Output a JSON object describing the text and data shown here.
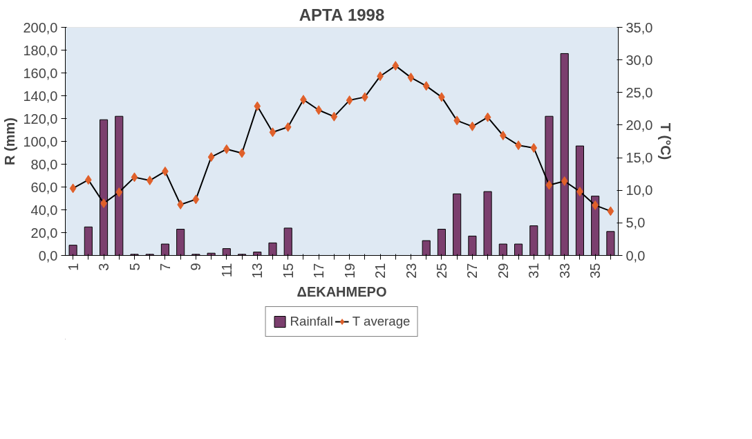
{
  "chart_data": {
    "type": "bar",
    "title": "ΑΡΤΑ 1998",
    "xlabel": "ΔΕΚΑΗΜΕΡΟ",
    "ylabel": "R (mm)",
    "y2label": "T (°C)",
    "categories": [
      "1",
      null,
      "3",
      null,
      "5",
      null,
      "7",
      null,
      "9",
      null,
      "11",
      null,
      "13",
      null,
      "15",
      null,
      "17",
      null,
      "19",
      null,
      "21",
      null,
      "23",
      null,
      "25",
      null,
      "27",
      null,
      "29",
      null,
      "31",
      null,
      "33",
      null,
      "35",
      null
    ],
    "series": [
      {
        "name": "Rainfall",
        "color": "#7b3f6e",
        "values": [
          9,
          25,
          119,
          122,
          1,
          1,
          10,
          23,
          1,
          2,
          6,
          1,
          3,
          11,
          24,
          0,
          0,
          0,
          0,
          0,
          0,
          0,
          0,
          13,
          23,
          54,
          17,
          56,
          10,
          10,
          26,
          122,
          177,
          96,
          52,
          21
        ]
      },
      {
        "name": "T average",
        "type": "line",
        "axis": "y2",
        "color": "#e0602a",
        "marker": "diamond",
        "values": [
          10.3,
          11.6,
          8.0,
          9.7,
          12.0,
          11.5,
          12.9,
          7.8,
          8.6,
          15.1,
          16.3,
          15.7,
          22.9,
          18.9,
          19.7,
          23.9,
          22.3,
          21.3,
          23.8,
          24.3,
          27.5,
          29.1,
          27.3,
          26.0,
          24.3,
          20.7,
          19.8,
          21.2,
          18.4,
          16.9,
          16.5,
          10.8,
          11.4,
          9.8,
          7.7,
          6.8
        ]
      }
    ],
    "ylim": [
      0,
      200
    ],
    "yticks": [
      {
        "value": 0,
        "label": "0,0"
      },
      {
        "value": 20,
        "label": "20,0"
      },
      {
        "value": 40,
        "label": "40,0"
      },
      {
        "value": 60,
        "label": "60,0"
      },
      {
        "value": 80,
        "label": "80,0"
      },
      {
        "value": 100,
        "label": "100,0"
      },
      {
        "value": 120,
        "label": "120,0"
      },
      {
        "value": 140,
        "label": "140,0"
      },
      {
        "value": 160,
        "label": "160,0"
      },
      {
        "value": 180,
        "label": "180,0"
      },
      {
        "value": 200,
        "label": "200,0"
      }
    ],
    "y2lim": [
      0,
      35
    ],
    "y2ticks": [
      {
        "value": 0,
        "label": "0,0"
      },
      {
        "value": 5,
        "label": "5,0"
      },
      {
        "value": 10,
        "label": "10,0"
      },
      {
        "value": 15,
        "label": "15,0"
      },
      {
        "value": 20,
        "label": "20,0"
      },
      {
        "value": 25,
        "label": "25,0"
      },
      {
        "value": 30,
        "label": "30,0"
      },
      {
        "value": 35,
        "label": "35,0"
      }
    ],
    "grid": false,
    "legend": "bottom"
  }
}
